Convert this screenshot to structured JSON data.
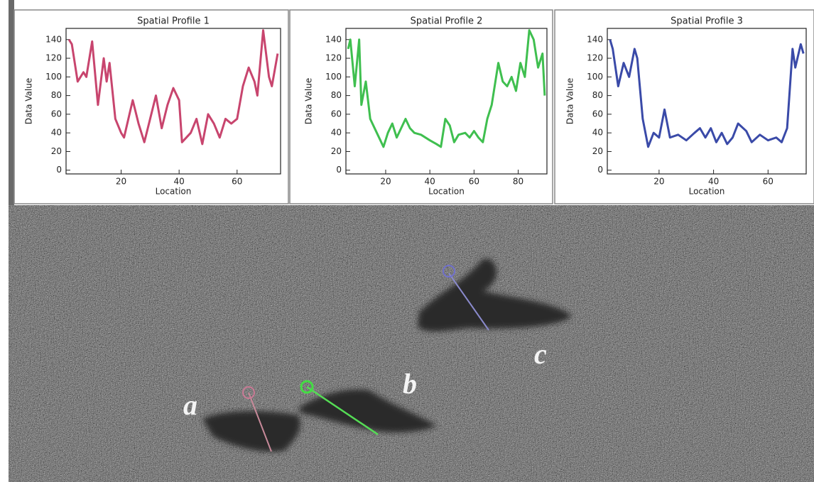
{
  "chart_data": [
    {
      "type": "line",
      "title": "Spatial Profile 1",
      "x_label": "Location",
      "y_label": "Data Value",
      "color": "#c8456e",
      "xlim": [
        1,
        75
      ],
      "xticks": [
        20,
        40,
        60
      ],
      "ylim": [
        -4,
        152
      ],
      "yticks": [
        0,
        20,
        40,
        60,
        80,
        100,
        120,
        140
      ],
      "x": [
        2,
        3,
        5,
        7,
        8,
        10,
        12,
        14,
        15,
        16,
        18,
        20,
        21,
        24,
        26,
        28,
        30,
        32,
        34,
        36,
        38,
        40,
        41,
        44,
        46,
        48,
        50,
        52,
        54,
        56,
        58,
        60,
        62,
        64,
        66,
        67,
        69,
        71,
        72,
        74
      ],
      "values": [
        140,
        135,
        95,
        105,
        100,
        138,
        70,
        120,
        95,
        115,
        55,
        40,
        35,
        75,
        50,
        30,
        55,
        80,
        45,
        70,
        88,
        75,
        30,
        40,
        55,
        28,
        60,
        50,
        35,
        55,
        50,
        55,
        90,
        110,
        95,
        80,
        150,
        100,
        90,
        125
      ]
    },
    {
      "type": "line",
      "title": "Spatial Profile 2",
      "x_label": "Location",
      "y_label": "Data Value",
      "color": "#3fbf4f",
      "xlim": [
        2,
        93
      ],
      "xticks": [
        20,
        40,
        60,
        80
      ],
      "ylim": [
        -4,
        152
      ],
      "yticks": [
        0,
        20,
        40,
        60,
        80,
        100,
        120,
        140
      ],
      "x": [
        3,
        4,
        6,
        8,
        9,
        11,
        13,
        16,
        19,
        21,
        23,
        25,
        27,
        29,
        31,
        33,
        36,
        40,
        43,
        45,
        47,
        49,
        51,
        53,
        56,
        58,
        60,
        62,
        64,
        66,
        68,
        71,
        73,
        75,
        77,
        79,
        81,
        83,
        85,
        87,
        89,
        91,
        92
      ],
      "values": [
        130,
        140,
        90,
        140,
        70,
        95,
        55,
        40,
        25,
        40,
        50,
        35,
        45,
        55,
        45,
        40,
        38,
        32,
        28,
        25,
        55,
        48,
        30,
        38,
        40,
        35,
        42,
        35,
        30,
        55,
        70,
        115,
        95,
        90,
        100,
        85,
        115,
        100,
        150,
        140,
        110,
        125,
        80
      ]
    },
    {
      "type": "line",
      "title": "Spatial Profile 3",
      "x_label": "Location",
      "y_label": "Data Value",
      "color": "#3a4aa8",
      "xlim": [
        1,
        74
      ],
      "xticks": [
        20,
        40,
        60
      ],
      "ylim": [
        -4,
        152
      ],
      "yticks": [
        0,
        20,
        40,
        60,
        80,
        100,
        120,
        140
      ],
      "x": [
        2,
        3,
        5,
        7,
        9,
        11,
        12,
        14,
        16,
        18,
        20,
        22,
        24,
        27,
        30,
        33,
        35,
        37,
        39,
        41,
        43,
        45,
        47,
        49,
        52,
        54,
        57,
        60,
        63,
        65,
        67,
        69,
        70,
        72,
        73
      ],
      "values": [
        140,
        130,
        90,
        115,
        100,
        130,
        120,
        55,
        25,
        40,
        35,
        65,
        35,
        38,
        32,
        40,
        45,
        35,
        45,
        30,
        40,
        28,
        35,
        50,
        42,
        30,
        38,
        32,
        35,
        30,
        45,
        130,
        110,
        135,
        125
      ]
    }
  ],
  "image": {
    "labels": [
      "a",
      "b",
      "c"
    ]
  }
}
